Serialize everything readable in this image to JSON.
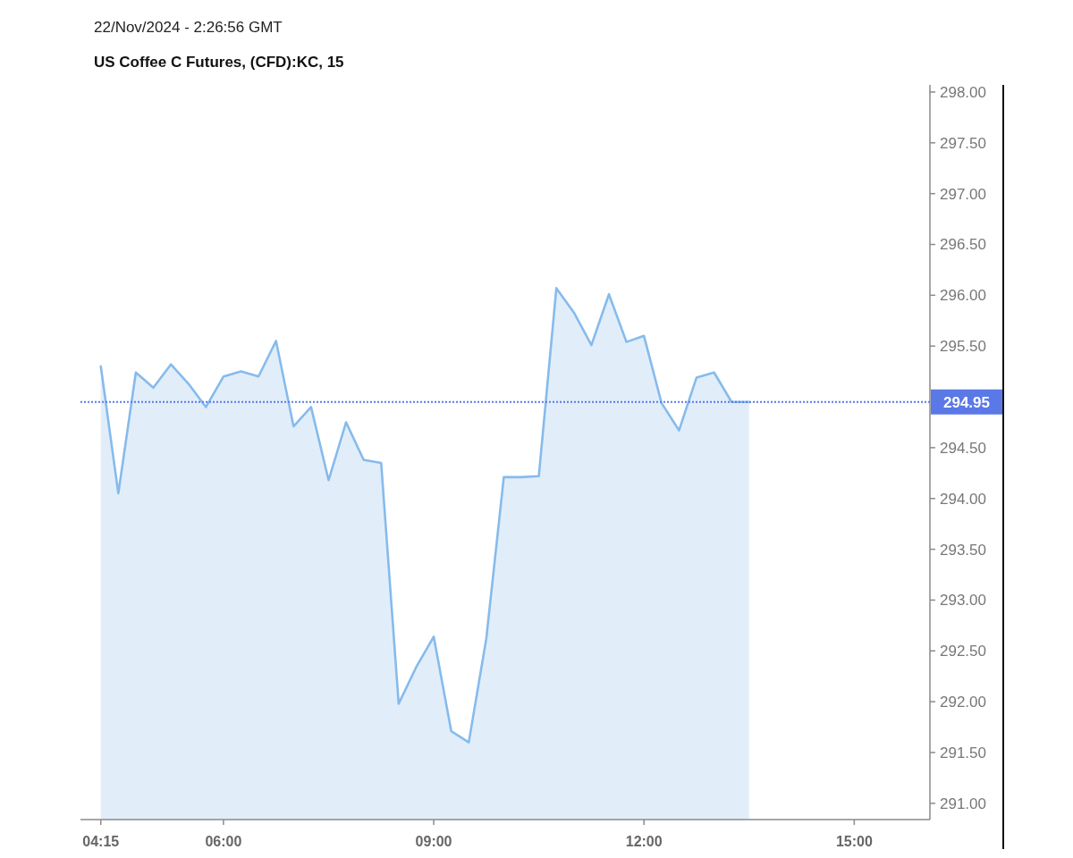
{
  "chart_data": {
    "type": "area",
    "title": "US Coffee C Futures, (CFD):KC, 15",
    "annotations": [
      "22/Nov/2024 - 2:26:56 GMT"
    ],
    "x": [
      4.25,
      4.5,
      4.75,
      5,
      5.25,
      5.5,
      5.75,
      6,
      6.25,
      6.5,
      6.75,
      7,
      7.25,
      7.5,
      7.75,
      8,
      8.25,
      8.5,
      8.75,
      9,
      9.25,
      9.5,
      9.75,
      10,
      10.25,
      10.5,
      10.75,
      11,
      11.25,
      11.5,
      11.75,
      12,
      12.25,
      12.5,
      12.75,
      13,
      13.25,
      13.5
    ],
    "values": [
      295.3,
      294.05,
      295.24,
      295.09,
      295.32,
      295.13,
      294.9,
      295.2,
      295.25,
      295.2,
      295.55,
      294.71,
      294.9,
      294.18,
      294.75,
      294.38,
      294.35,
      291.98,
      292.34,
      292.64,
      291.71,
      291.6,
      292.62,
      294.21,
      294.21,
      294.22,
      296.07,
      295.83,
      295.51,
      296.01,
      295.54,
      295.6,
      294.94,
      294.67,
      295.19,
      295.24,
      294.95,
      294.95
    ],
    "color": "#86bbec",
    "xlim": [
      3.96,
      16.08
    ],
    "xticks": [
      {
        "value": 4.25,
        "label": "04:15"
      },
      {
        "value": 6,
        "label": "06:00"
      },
      {
        "value": 9,
        "label": "09:00"
      },
      {
        "value": 12,
        "label": "12:00"
      },
      {
        "value": 15,
        "label": "15:00"
      }
    ],
    "ylim": [
      290.84,
      298.07
    ],
    "yticks": [
      {
        "value": 291,
        "label": "291.00"
      },
      {
        "value": 291.5,
        "label": "291.50"
      },
      {
        "value": 292,
        "label": "292.00"
      },
      {
        "value": 292.5,
        "label": "292.50"
      },
      {
        "value": 293,
        "label": "293.00"
      },
      {
        "value": 293.5,
        "label": "293.50"
      },
      {
        "value": 294,
        "label": "294.00"
      },
      {
        "value": 294.5,
        "label": "294.50"
      },
      {
        "value": 295.5,
        "label": "295.50"
      },
      {
        "value": 296,
        "label": "296.00"
      },
      {
        "value": 296.5,
        "label": "296.50"
      },
      {
        "value": 297,
        "label": "297.00"
      },
      {
        "value": 297.5,
        "label": "297.50"
      },
      {
        "value": 298,
        "label": "298.00"
      }
    ],
    "ref_lines": [
      {
        "axis": "y",
        "value": 294.95,
        "label": "294.95",
        "color": "#5a78e6",
        "line_style": "dotted"
      }
    ]
  }
}
